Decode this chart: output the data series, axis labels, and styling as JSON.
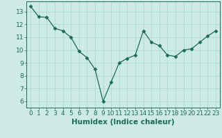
{
  "x": [
    0,
    1,
    2,
    3,
    4,
    5,
    6,
    7,
    8,
    9,
    10,
    11,
    12,
    13,
    14,
    15,
    16,
    17,
    18,
    19,
    20,
    21,
    22,
    23
  ],
  "y": [
    13.4,
    12.6,
    12.55,
    11.7,
    11.5,
    11.0,
    9.9,
    9.4,
    8.5,
    6.0,
    7.5,
    9.0,
    9.35,
    9.6,
    11.5,
    10.6,
    10.35,
    9.6,
    9.5,
    10.0,
    10.1,
    10.6,
    11.1,
    11.5
  ],
  "line_color": "#1a6b5a",
  "marker": "D",
  "marker_size": 2.5,
  "bg_color": "#ceeae5",
  "grid_color": "#aed8d0",
  "xlabel": "Humidex (Indice chaleur)",
  "ylim": [
    5.5,
    13.8
  ],
  "xlim": [
    -0.5,
    23.5
  ],
  "yticks": [
    6,
    7,
    8,
    9,
    10,
    11,
    12,
    13
  ],
  "xticks": [
    0,
    1,
    2,
    3,
    4,
    5,
    6,
    7,
    8,
    9,
    10,
    11,
    12,
    13,
    14,
    15,
    16,
    17,
    18,
    19,
    20,
    21,
    22,
    23
  ],
  "tick_label_color": "#1a6b5a",
  "axis_color": "#1a6b5a",
  "xlabel_fontsize": 7.5,
  "tick_fontsize": 6.5
}
